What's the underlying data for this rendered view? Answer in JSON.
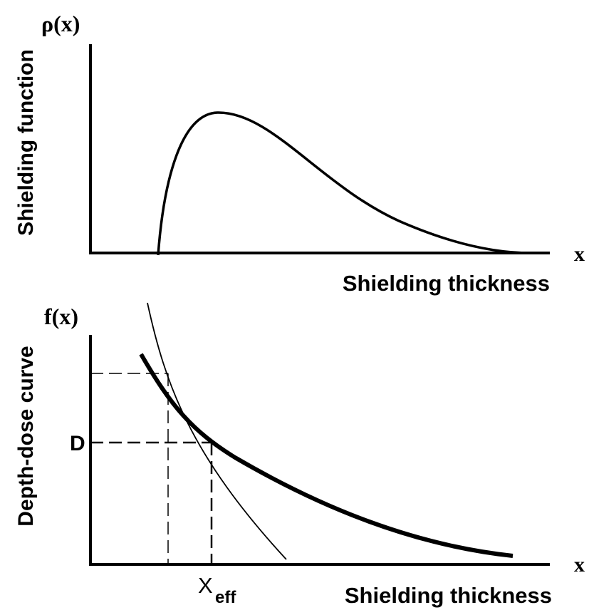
{
  "panels": [
    {
      "y_label_symbol": "ρ(x)",
      "y_axis_title": "Shielding function",
      "x_label_symbol": "x",
      "x_axis_title": "Shielding thickness"
    },
    {
      "y_label_symbol": "f(x)",
      "y_axis_title": "Depth-dose curve",
      "x_label_symbol": "x",
      "x_axis_title": "Shielding thickness",
      "marker_label": "D",
      "x_marker_label": "X",
      "x_marker_subscript": "eff"
    }
  ]
}
